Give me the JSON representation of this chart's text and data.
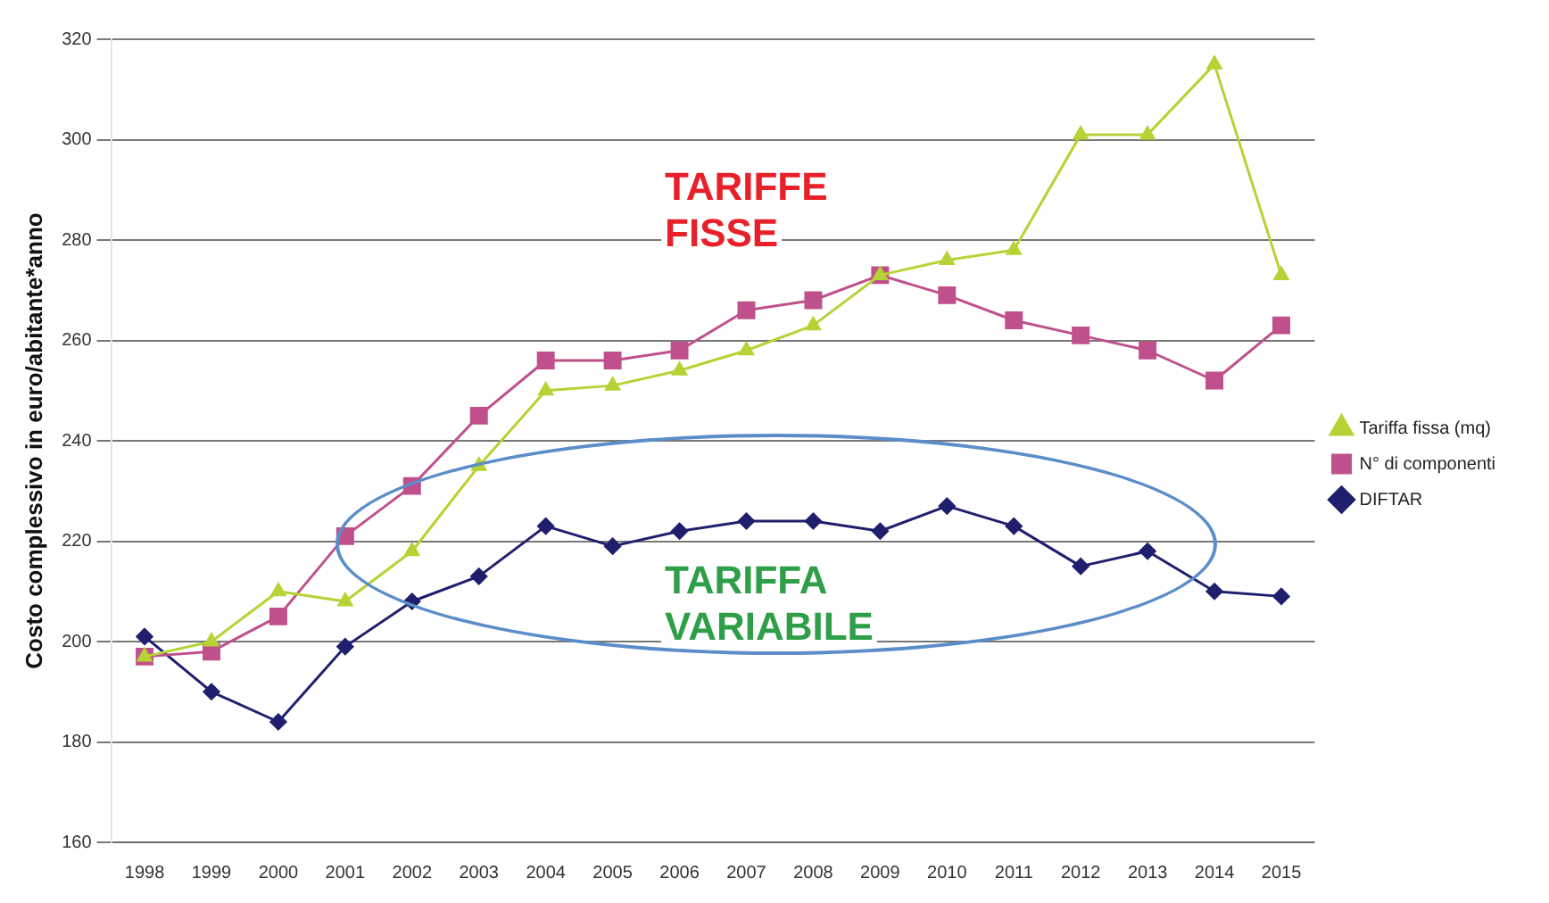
{
  "chart_data": {
    "type": "line",
    "ylabel": "Costo complessivo in euro/abitante*anno",
    "categories": [
      "1998",
      "1999",
      "2000",
      "2001",
      "2002",
      "2003",
      "2004",
      "2005",
      "2006",
      "2007",
      "2008",
      "2009",
      "2010",
      "2011",
      "2012",
      "2013",
      "2014",
      "2015"
    ],
    "series": [
      {
        "name": "Tariffa fissa (mq)",
        "color": "#b5d334",
        "marker": "triangle",
        "values": [
          197,
          200,
          210,
          208,
          218,
          235,
          250,
          251,
          254,
          258,
          263,
          273,
          276,
          278,
          301,
          301,
          315,
          273
        ]
      },
      {
        "name": "N° di componenti",
        "color": "#c0508c",
        "marker": "square",
        "values": [
          197,
          198,
          205,
          221,
          231,
          245,
          256,
          256,
          258,
          266,
          268,
          273,
          269,
          264,
          261,
          258,
          252,
          263
        ]
      },
      {
        "name": "DIFTAR",
        "color": "#1f1f6e",
        "marker": "diamond",
        "values": [
          201,
          190,
          184,
          199,
          208,
          213,
          223,
          219,
          222,
          224,
          224,
          222,
          227,
          223,
          215,
          218,
          210,
          209
        ]
      }
    ],
    "ylim": [
      160,
      320
    ],
    "yticks": [
      160,
      180,
      200,
      220,
      240,
      260,
      280,
      300,
      320
    ],
    "grid": "y",
    "legend": "right",
    "line_style": "solid",
    "annotations": [
      "TARIFFE FISSE",
      "TARIFFA VARIABILE"
    ]
  }
}
